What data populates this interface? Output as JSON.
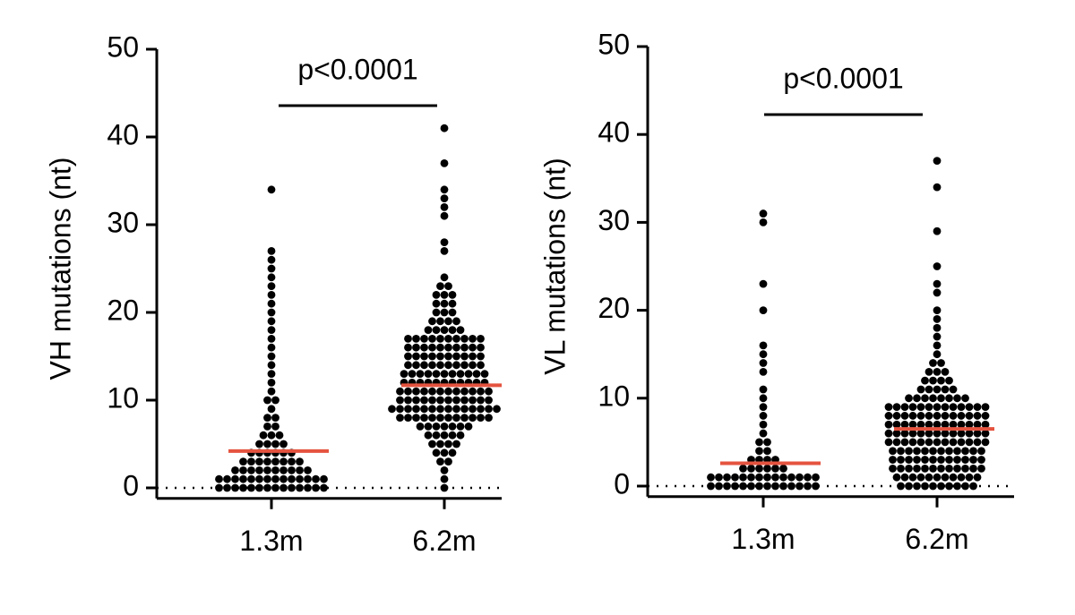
{
  "chart_data": [
    {
      "type": "beeswarm",
      "ylabel": "VH mutations (nt)",
      "annotation": "p<0.0001",
      "categories": [
        "1.3m",
        "6.2m"
      ],
      "levels": [
        [
          0,
          1,
          2,
          3,
          4,
          5,
          6,
          7,
          8,
          9,
          10,
          11,
          12,
          13,
          14,
          15,
          16,
          17,
          18,
          19,
          20,
          21,
          22,
          23,
          24,
          25,
          26,
          27,
          34
        ],
        [
          0,
          1,
          2,
          3,
          4,
          5,
          6,
          7,
          8,
          9,
          10,
          11,
          12,
          13,
          14,
          15,
          16,
          17,
          18,
          19,
          20,
          21,
          22,
          23,
          24,
          27,
          28,
          31,
          32,
          33,
          34,
          37,
          41
        ]
      ],
      "counts": [
        [
          14,
          14,
          10,
          8,
          6,
          4,
          3,
          2,
          2,
          1,
          2,
          1,
          1,
          1,
          1,
          1,
          1,
          1,
          1,
          1,
          1,
          1,
          1,
          1,
          1,
          1,
          1,
          1,
          1
        ],
        [
          1,
          1,
          1,
          2,
          3,
          4,
          5,
          7,
          12,
          14,
          12,
          12,
          11,
          11,
          10,
          10,
          10,
          10,
          5,
          4,
          3,
          3,
          3,
          2,
          1,
          1,
          1,
          1,
          1,
          1,
          1,
          1,
          1
        ]
      ],
      "medians": [
        4.2,
        11.7
      ],
      "dot_color": "#000000",
      "median_color": "#e5533f",
      "ylim": [
        -1.2,
        50
      ],
      "yticks": [
        0,
        10,
        20,
        30,
        40,
        50
      ],
      "zero_line": true
    },
    {
      "type": "beeswarm",
      "ylabel": "VL mutations (nt)",
      "annotation": "p<0.0001",
      "categories": [
        "1.3m",
        "6.2m"
      ],
      "levels": [
        [
          0,
          1,
          2,
          3,
          4,
          5,
          6,
          7,
          8,
          9,
          10,
          11,
          13,
          14,
          15,
          16,
          20,
          23,
          30,
          31
        ],
        [
          0,
          1,
          2,
          3,
          4,
          5,
          6,
          7,
          8,
          9,
          10,
          11,
          12,
          13,
          14,
          15,
          16,
          17,
          18,
          19,
          20,
          22,
          23,
          25,
          29,
          34,
          37
        ]
      ],
      "counts": [
        [
          14,
          14,
          6,
          4,
          2,
          2,
          1,
          1,
          1,
          1,
          1,
          1,
          1,
          1,
          1,
          1,
          1,
          1,
          1,
          1
        ],
        [
          10,
          11,
          12,
          12,
          12,
          13,
          13,
          13,
          13,
          13,
          8,
          5,
          4,
          3,
          2,
          1,
          1,
          1,
          1,
          1,
          1,
          1,
          1,
          1,
          1,
          1,
          1
        ]
      ],
      "medians": [
        2.6,
        6.5
      ],
      "dot_color": "#000000",
      "median_color": "#e5533f",
      "ylim": [
        -1.2,
        50
      ],
      "yticks": [
        0,
        10,
        20,
        30,
        40,
        50
      ],
      "zero_line": true
    }
  ]
}
